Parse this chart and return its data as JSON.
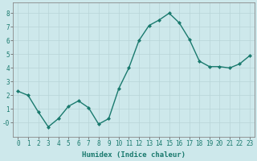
{
  "x": [
    0,
    1,
    2,
    3,
    4,
    5,
    6,
    7,
    8,
    9,
    10,
    11,
    12,
    13,
    14,
    15,
    16,
    17,
    18,
    19,
    20,
    21,
    22,
    23
  ],
  "y": [
    2.3,
    2.0,
    0.8,
    -0.3,
    0.3,
    1.2,
    1.6,
    1.1,
    -0.1,
    0.3,
    2.5,
    4.0,
    6.0,
    7.1,
    7.5,
    8.0,
    7.3,
    6.1,
    4.5,
    4.1,
    4.1,
    4.0,
    4.3,
    4.9
  ],
  "line_color": "#1a7a6e",
  "marker": "D",
  "marker_size": 2,
  "bg_color": "#cde8eb",
  "grid_color": "#b8d5d8",
  "xlabel": "Humidex (Indice chaleur)",
  "xlim": [
    -0.5,
    23.5
  ],
  "ylim": [
    -1.0,
    8.8
  ],
  "yticks": [
    0,
    1,
    2,
    3,
    4,
    5,
    6,
    7,
    8
  ],
  "ytick_labels": [
    "-0",
    "1",
    "2",
    "3",
    "4",
    "5",
    "6",
    "7",
    "8"
  ],
  "xtick_labels": [
    "0",
    "1",
    "2",
    "3",
    "4",
    "5",
    "6",
    "7",
    "8",
    "9",
    "10",
    "11",
    "12",
    "13",
    "14",
    "15",
    "16",
    "17",
    "18",
    "19",
    "20",
    "21",
    "22",
    "23"
  ],
  "xlabel_fontsize": 6.5,
  "tick_fontsize": 5.5,
  "line_width": 1.0
}
